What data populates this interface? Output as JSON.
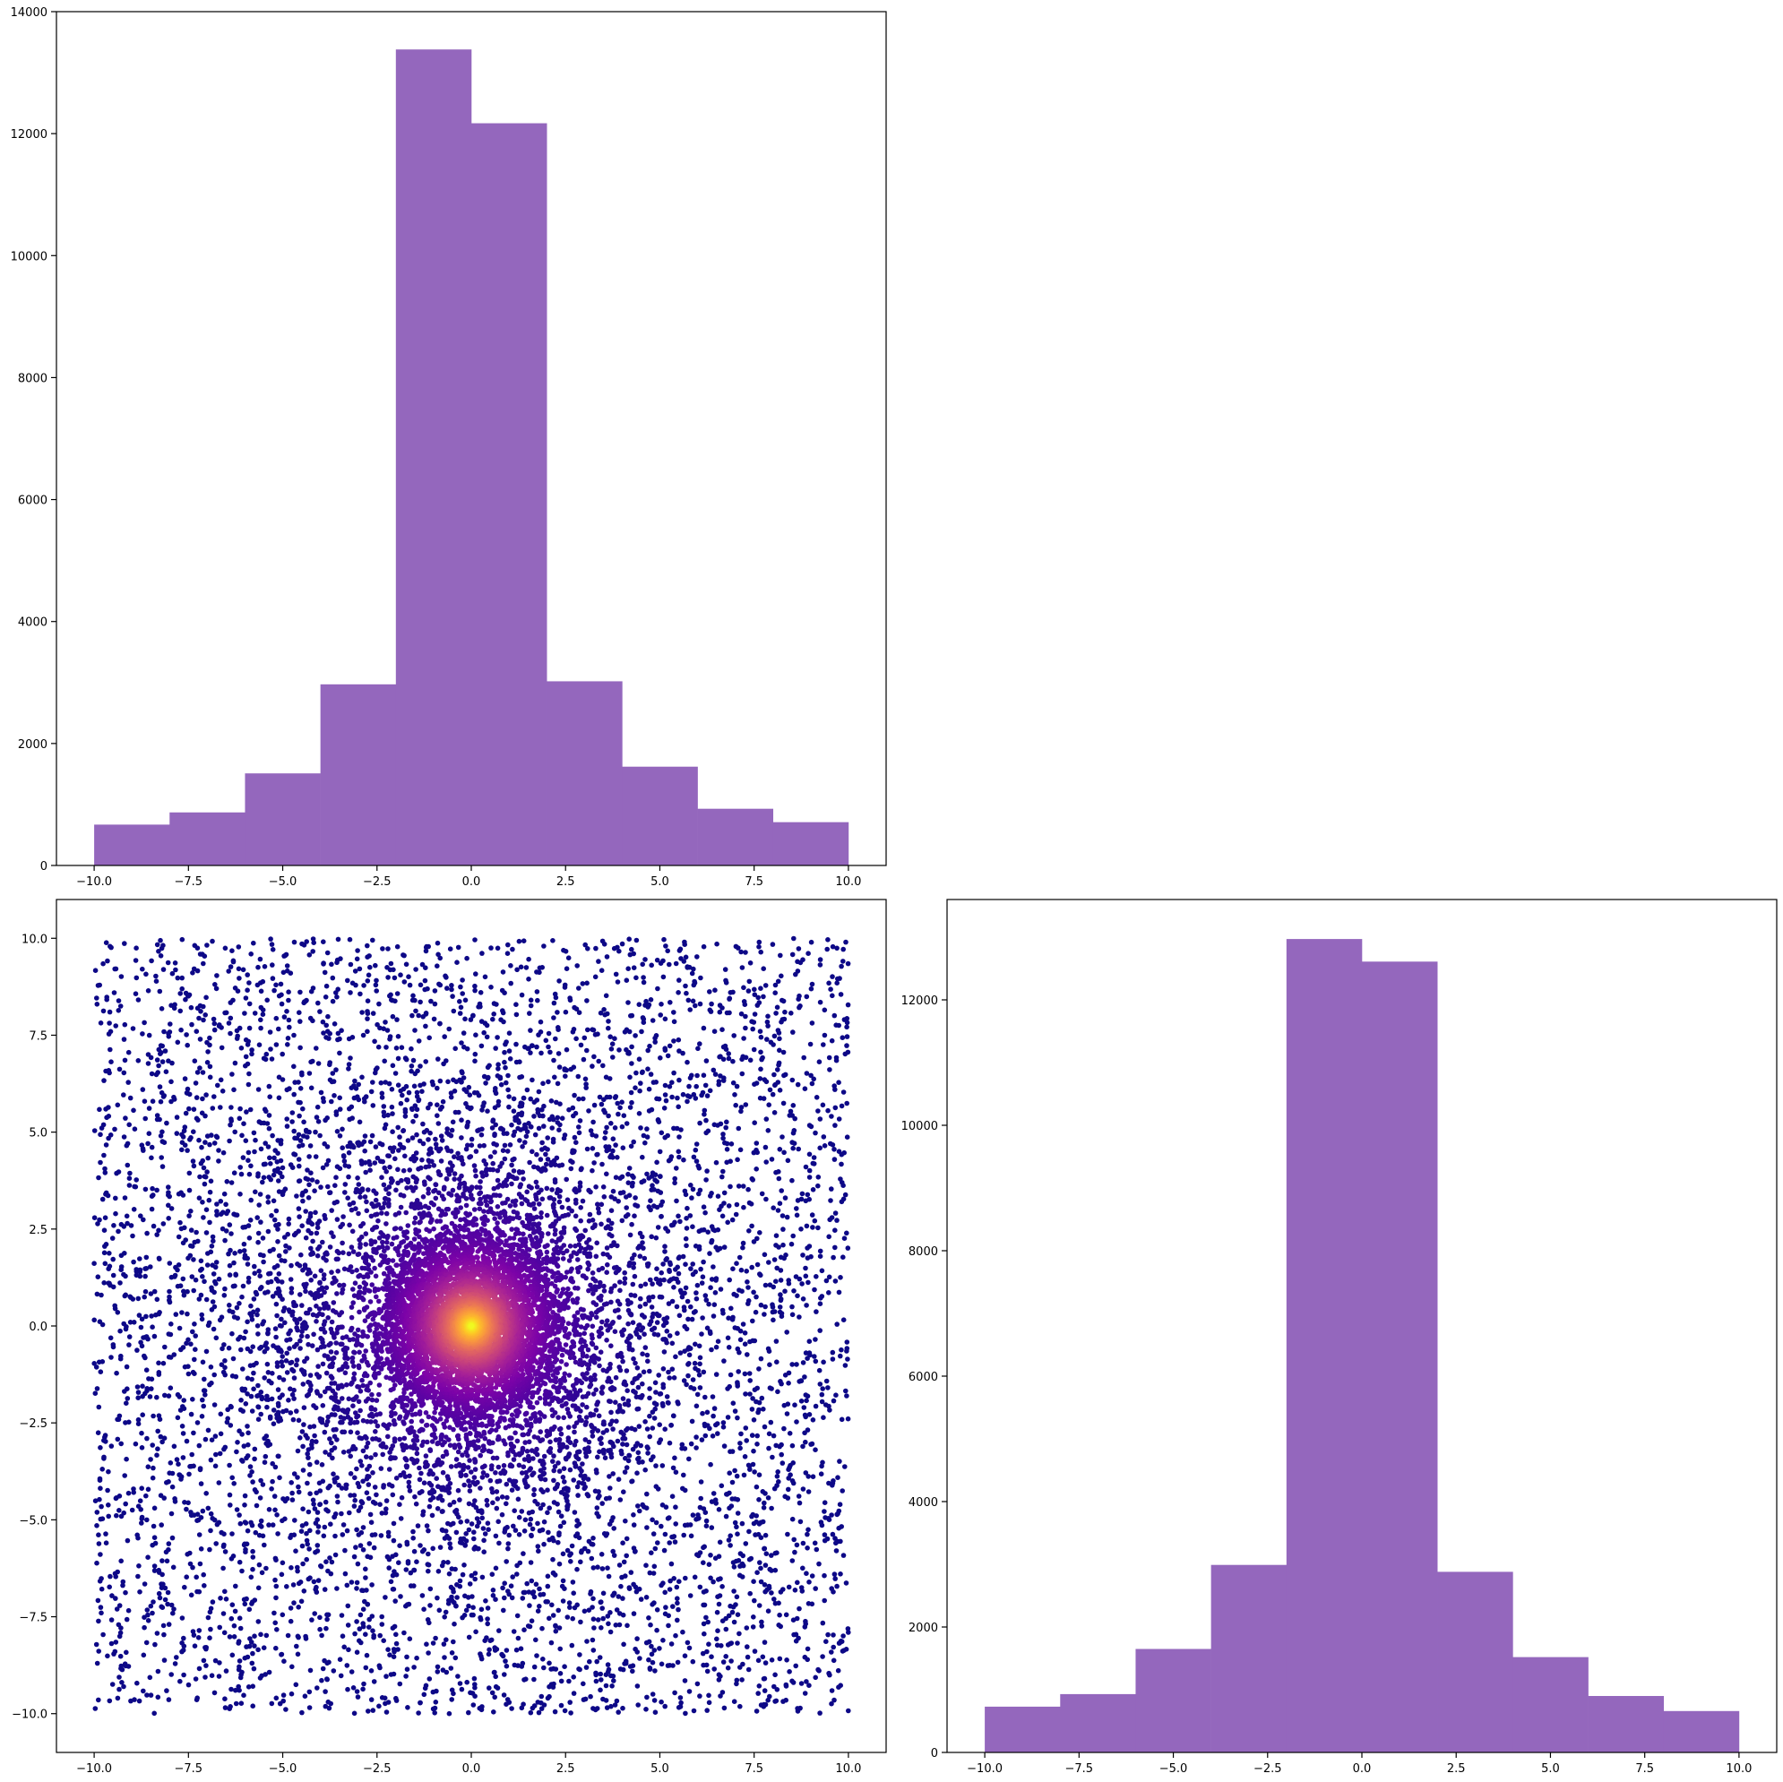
{
  "chart_data": [
    {
      "type": "bar",
      "panel": "top-left",
      "title": "",
      "xlabel": "",
      "ylabel": "",
      "bin_edges": [
        -10,
        -8,
        -6,
        -4,
        -2,
        0,
        2,
        4,
        6,
        8,
        10
      ],
      "values": [
        670,
        870,
        1510,
        2970,
        13380,
        12170,
        3020,
        1620,
        930,
        710
      ],
      "xlim": [
        -11,
        11
      ],
      "ylim": [
        0,
        14000
      ],
      "xticks": [
        -10.0,
        -7.5,
        -5.0,
        -2.5,
        0.0,
        2.5,
        5.0,
        7.5,
        10.0
      ],
      "xtick_labels": [
        "−10.0",
        "−7.5",
        "−5.0",
        "−2.5",
        "0.0",
        "2.5",
        "5.0",
        "7.5",
        "10.0"
      ],
      "yticks": [
        0,
        2000,
        4000,
        6000,
        8000,
        10000,
        12000,
        14000
      ],
      "ytick_labels": [
        "0",
        "2000",
        "4000",
        "6000",
        "8000",
        "10000",
        "12000",
        "14000"
      ],
      "color": "#9467bd",
      "grid": false,
      "legend": "none"
    },
    {
      "type": "scatter",
      "panel": "bottom-left",
      "title": "",
      "xlabel": "",
      "ylabel": "",
      "description_of_points": "uniform random points on [-10,10]x[-10,10] with density increasing toward origin; color mapped by closeness to origin using plasma colormap",
      "x_range": [
        -10,
        10
      ],
      "y_range": [
        -10,
        10
      ],
      "xlim": [
        -11,
        11
      ],
      "ylim": [
        -11,
        11
      ],
      "xticks": [
        -10.0,
        -7.5,
        -5.0,
        -2.5,
        0.0,
        2.5,
        5.0,
        7.5,
        10.0
      ],
      "xtick_labels": [
        "−10.0",
        "−7.5",
        "−5.0",
        "−2.5",
        "0.0",
        "2.5",
        "5.0",
        "7.5",
        "10.0"
      ],
      "yticks": [
        -10.0,
        -7.5,
        -5.0,
        -2.5,
        0.0,
        2.5,
        5.0,
        7.5,
        10.0
      ],
      "ytick_labels": [
        "−10.0",
        "−7.5",
        "−5.0",
        "−2.5",
        "0.0",
        "2.5",
        "5.0",
        "7.5",
        "10.0"
      ],
      "colormap": "plasma",
      "grid": false,
      "legend": "none"
    },
    {
      "type": "bar",
      "panel": "bottom-right",
      "title": "",
      "xlabel": "",
      "ylabel": "",
      "bin_edges": [
        -10,
        -8,
        -6,
        -4,
        -2,
        0,
        2,
        4,
        6,
        8,
        10
      ],
      "values": [
        730,
        930,
        1650,
        2990,
        12970,
        12610,
        2880,
        1520,
        900,
        660
      ],
      "xlim": [
        -11,
        11
      ],
      "ylim": [
        0,
        13600
      ],
      "xticks": [
        -10.0,
        -7.5,
        -5.0,
        -2.5,
        0.0,
        2.5,
        5.0,
        7.5,
        10.0
      ],
      "xtick_labels": [
        "−10.0",
        "−7.5",
        "−5.0",
        "−2.5",
        "0.0",
        "2.5",
        "5.0",
        "7.5",
        "10.0"
      ],
      "yticks": [
        0,
        2000,
        4000,
        6000,
        8000,
        10000,
        12000
      ],
      "ytick_labels": [
        "0",
        "2000",
        "4000",
        "6000",
        "8000",
        "10000",
        "12000"
      ],
      "color": "#9467bd",
      "grid": false,
      "legend": "none"
    }
  ]
}
